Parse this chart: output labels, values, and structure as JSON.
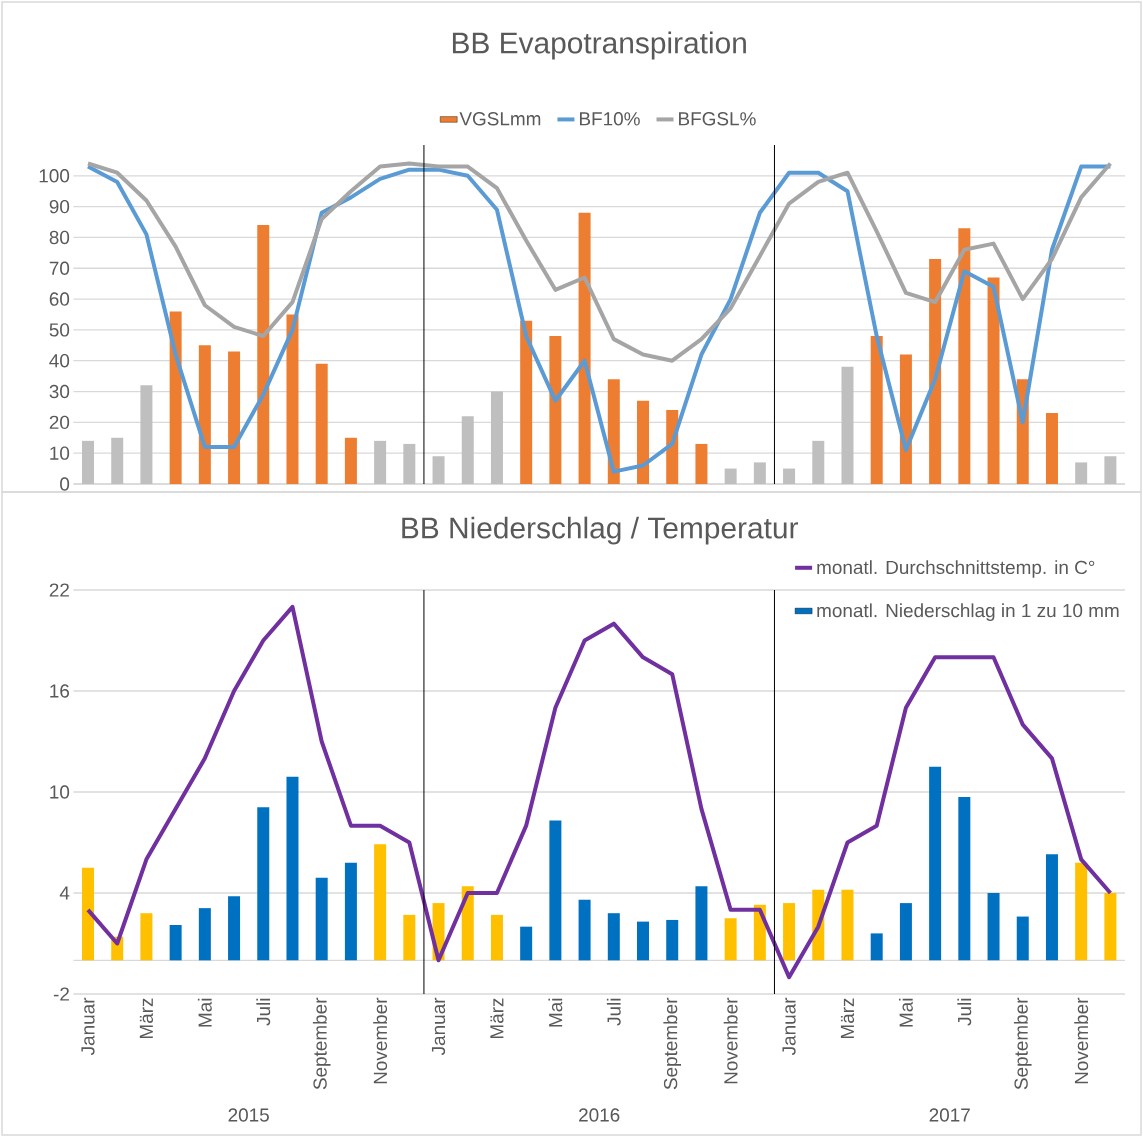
{
  "chart_data": [
    {
      "type": "bar",
      "title": "BB Evapotranspiration",
      "categories": [
        null,
        null,
        null,
        null,
        null,
        null,
        null,
        null,
        null,
        null,
        null,
        null,
        null,
        null,
        null,
        null,
        null,
        null,
        null,
        null,
        null,
        null,
        null,
        null,
        null,
        null,
        null,
        null,
        null,
        null,
        null,
        null,
        null,
        null,
        null,
        null
      ],
      "series": [
        {
          "name": "VGSLmm",
          "color": "#ed7d31",
          "colors": [
            "#bfbfbf",
            "#bfbfbf",
            "#bfbfbf",
            "#ed7d31",
            "#ed7d31",
            "#ed7d31",
            "#ed7d31",
            "#ed7d31",
            "#ed7d31",
            "#ed7d31",
            "#bfbfbf",
            "#bfbfbf",
            "#bfbfbf",
            "#bfbfbf",
            "#bfbfbf",
            "#ed7d31",
            "#ed7d31",
            "#ed7d31",
            "#ed7d31",
            "#ed7d31",
            "#ed7d31",
            "#ed7d31",
            "#bfbfbf",
            "#bfbfbf",
            "#bfbfbf",
            "#bfbfbf",
            "#bfbfbf",
            "#ed7d31",
            "#ed7d31",
            "#ed7d31",
            "#ed7d31",
            "#ed7d31",
            "#ed7d31",
            "#ed7d31",
            "#bfbfbf",
            "#bfbfbf"
          ],
          "values": [
            14,
            15,
            32,
            56,
            45,
            43,
            84,
            55,
            39,
            15,
            14,
            13,
            9,
            22,
            30,
            53,
            48,
            88,
            34,
            27,
            24,
            13,
            5,
            7,
            5,
            14,
            38,
            48,
            42,
            73,
            83,
            67,
            34,
            23,
            7,
            9
          ]
        },
        {
          "name": "BF10%",
          "type": "line",
          "color": "#5b9bd5",
          "values": [
            103,
            98,
            81,
            42,
            12,
            12,
            29,
            50,
            88,
            93,
            99,
            102,
            102,
            100,
            89,
            48,
            27,
            40,
            4,
            6,
            13,
            42,
            60,
            88,
            101,
            101,
            95,
            48,
            11,
            34,
            69,
            64,
            20,
            76,
            103,
            103
          ]
        },
        {
          "name": "BFGSL%",
          "type": "line",
          "color": "#a5a5a5",
          "values": [
            104,
            101,
            92,
            77,
            58,
            51,
            48,
            59,
            86,
            95,
            103,
            104,
            103,
            103,
            96,
            79,
            63,
            67,
            47,
            42,
            40,
            47,
            57,
            74,
            91,
            98,
            101,
            82,
            62,
            59,
            76,
            78,
            60,
            73,
            93,
            104
          ]
        }
      ],
      "ylim": [
        0,
        110
      ],
      "yticks": [
        0,
        10,
        20,
        30,
        40,
        50,
        60,
        70,
        80,
        90,
        100
      ],
      "grid": "y",
      "legend": "top",
      "tick_labels": "y",
      "marker": "none",
      "line_style": "solid"
    },
    {
      "type": "bar",
      "title": "BB Niederschlag / Temperatur",
      "categories": [
        "Januar",
        null,
        "März",
        null,
        "Mai",
        null,
        "Juli",
        null,
        "September",
        null,
        "November",
        null,
        "Januar",
        null,
        "März",
        null,
        "Mai",
        null,
        "Juli",
        null,
        "September",
        null,
        "November",
        null,
        "Januar",
        null,
        "März",
        null,
        "Mai",
        null,
        "Juli",
        null,
        "September",
        null,
        "November",
        null
      ],
      "series": [
        {
          "name": "monatl. Durchschnittstemp. in C°",
          "type": "line",
          "color": "#7030a0",
          "values": [
            3,
            1,
            6,
            9,
            12,
            16,
            19,
            21,
            13,
            8,
            8,
            7,
            0,
            4,
            4,
            8,
            15,
            19,
            20,
            18,
            17,
            9,
            3,
            3,
            -1,
            2,
            7,
            8,
            15,
            18,
            18,
            18,
            14,
            12,
            6,
            4
          ]
        },
        {
          "name": "monatl. Niederschlag in 1 zu 10 mm",
          "color": "#0070c0",
          "colors": [
            "#ffc000",
            "#ffc000",
            "#ffc000",
            "#0070c0",
            "#0070c0",
            "#0070c0",
            "#0070c0",
            "#0070c0",
            "#0070c0",
            "#0070c0",
            "#ffc000",
            "#ffc000",
            "#ffc000",
            "#ffc000",
            "#ffc000",
            "#0070c0",
            "#0070c0",
            "#0070c0",
            "#0070c0",
            "#0070c0",
            "#0070c0",
            "#0070c0",
            "#ffc000",
            "#ffc000",
            "#ffc000",
            "#ffc000",
            "#ffc000",
            "#0070c0",
            "#0070c0",
            "#0070c0",
            "#0070c0",
            "#0070c0",
            "#0070c0",
            "#0070c0",
            "#ffc000",
            "#ffc000"
          ],
          "values": [
            5.5,
            1.4,
            2.8,
            2.1,
            3.1,
            3.8,
            9.1,
            10.9,
            4.9,
            5.8,
            6.9,
            2.7,
            3.4,
            4.4,
            2.7,
            2.0,
            8.3,
            3.6,
            2.8,
            2.3,
            2.4,
            4.4,
            2.5,
            3.3,
            3.4,
            4.2,
            4.2,
            1.6,
            3.4,
            11.5,
            9.7,
            4.0,
            2.6,
            6.3,
            5.8,
            4.0
          ]
        }
      ],
      "ylim": [
        -2,
        22
      ],
      "yticks": [
        -2,
        4,
        10,
        16,
        22
      ],
      "grid": "y",
      "legend": "top right",
      "marker": "none",
      "line_style": "solid",
      "annotations": [
        "2015",
        "2016",
        "2017"
      ]
    }
  ]
}
